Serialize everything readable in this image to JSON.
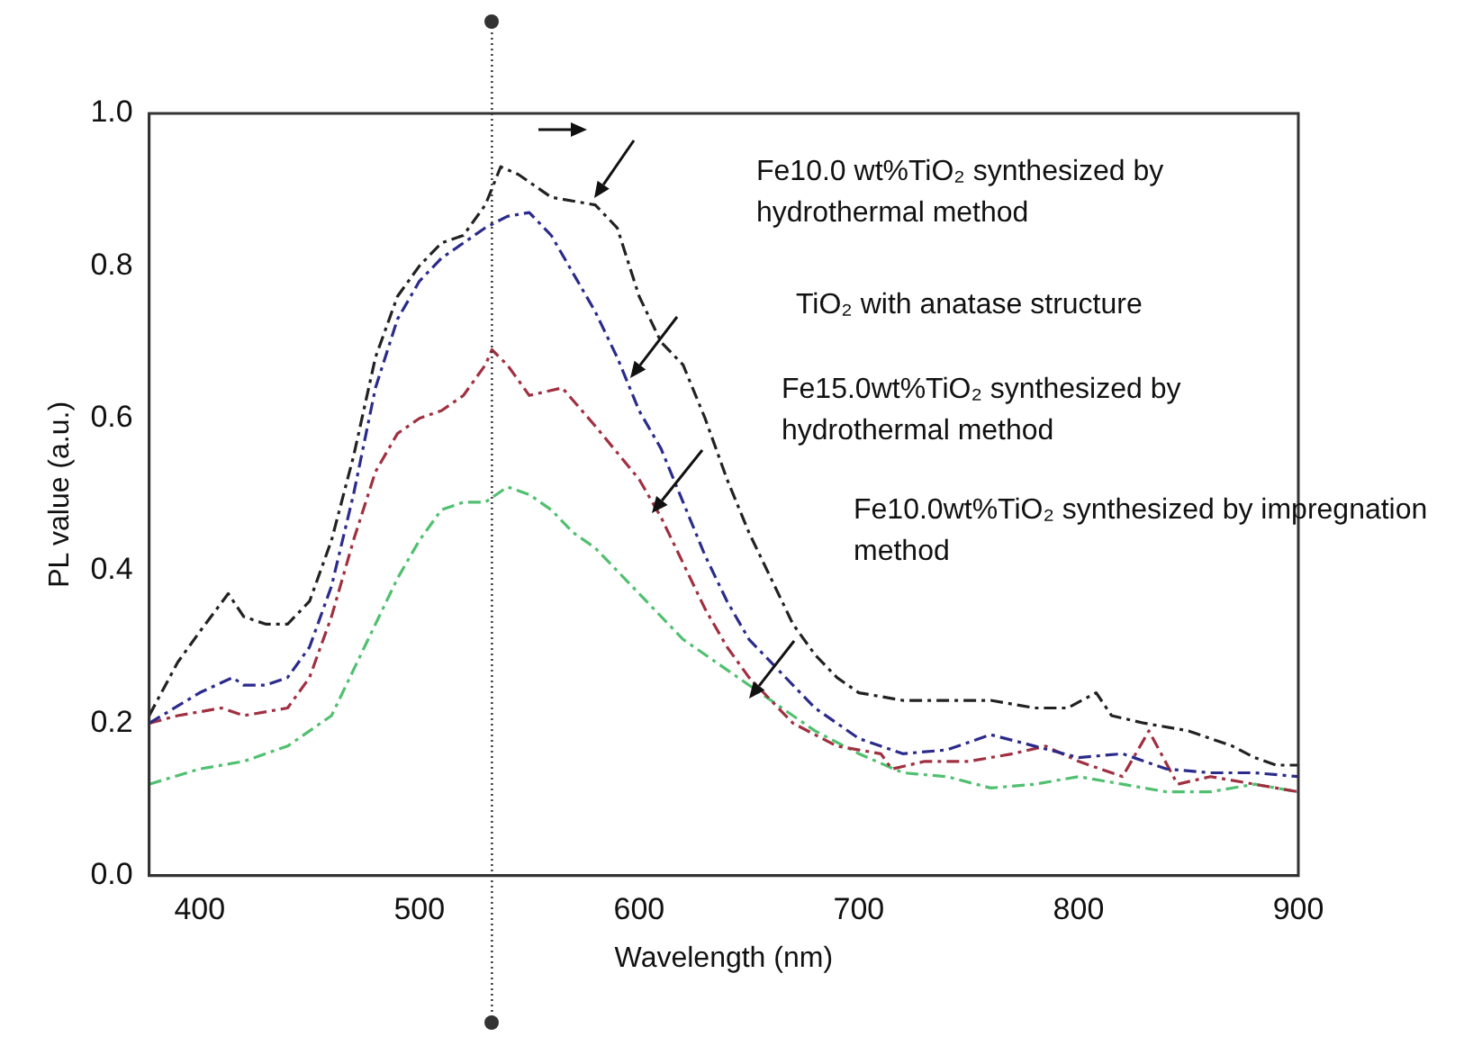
{
  "chart_data": {
    "type": "line",
    "xlabel": "Wavelength (nm)",
    "ylabel": "PL value (a.u.)",
    "xlim": [
      377,
      900
    ],
    "ylim": [
      0,
      1
    ],
    "xticks": [
      400,
      500,
      600,
      700,
      800,
      900
    ],
    "yticks": [
      {
        "value": 0,
        "label": "0.0"
      },
      {
        "value": 0.2,
        "label": "0.2"
      },
      {
        "value": 0.4,
        "label": "0.4"
      },
      {
        "value": 0.6,
        "label": "0.6"
      },
      {
        "value": 0.8,
        "label": "0.8"
      },
      {
        "value": 1,
        "label": "1.0"
      }
    ],
    "grid": false,
    "legend": false,
    "marker": "none",
    "line_style": "dashed",
    "ref_lines": [
      {
        "axis": "x",
        "value": 533,
        "color": "#333333",
        "line_style": "dotted"
      }
    ],
    "annotations": [
      "Fe10.0 wt%TiO₂ synthesized by hydrothermal method",
      "TiO₂ with anatase structure",
      "Fe15.0wt%TiO₂ synthesized by hydrothermal method",
      "Fe10.0wt%TiO₂ synthesized by impregnation method"
    ],
    "series": [
      {
        "color": "#222222",
        "x": [
          377,
          390,
          400,
          413,
          420,
          430,
          440,
          450,
          460,
          470,
          480,
          490,
          500,
          510,
          520,
          530,
          537,
          545,
          560,
          580,
          590,
          600,
          610,
          620,
          630,
          640,
          650,
          660,
          670,
          680,
          690,
          700,
          720,
          740,
          760,
          780,
          795,
          808,
          815,
          830,
          850,
          870,
          880,
          890,
          900
        ],
        "values": [
          0.21,
          0.28,
          0.32,
          0.37,
          0.34,
          0.33,
          0.33,
          0.36,
          0.44,
          0.55,
          0.68,
          0.76,
          0.8,
          0.83,
          0.84,
          0.88,
          0.93,
          0.92,
          0.89,
          0.88,
          0.85,
          0.76,
          0.7,
          0.67,
          0.6,
          0.52,
          0.45,
          0.39,
          0.33,
          0.29,
          0.26,
          0.24,
          0.23,
          0.23,
          0.23,
          0.22,
          0.22,
          0.24,
          0.21,
          0.2,
          0.19,
          0.17,
          0.155,
          0.145,
          0.145
        ]
      },
      {
        "color": "#2b2b8c",
        "x": [
          377,
          400,
          415,
          420,
          430,
          440,
          450,
          460,
          470,
          480,
          490,
          500,
          510,
          520,
          530,
          540,
          550,
          560,
          570,
          580,
          590,
          600,
          610,
          620,
          630,
          640,
          650,
          660,
          670,
          680,
          700,
          720,
          740,
          760,
          780,
          800,
          820,
          840,
          860,
          880,
          900
        ],
        "values": [
          0.2,
          0.24,
          0.26,
          0.25,
          0.25,
          0.26,
          0.3,
          0.38,
          0.5,
          0.64,
          0.73,
          0.78,
          0.81,
          0.83,
          0.85,
          0.865,
          0.87,
          0.84,
          0.79,
          0.74,
          0.68,
          0.61,
          0.56,
          0.49,
          0.42,
          0.36,
          0.31,
          0.28,
          0.25,
          0.22,
          0.18,
          0.16,
          0.165,
          0.185,
          0.17,
          0.155,
          0.16,
          0.14,
          0.135,
          0.135,
          0.13
        ]
      },
      {
        "color": "#a03040",
        "x": [
          377,
          390,
          410,
          420,
          440,
          450,
          460,
          470,
          480,
          490,
          500,
          510,
          520,
          530,
          533,
          540,
          550,
          565,
          580,
          600,
          610,
          620,
          630,
          640,
          650,
          660,
          670,
          690,
          710,
          715,
          730,
          750,
          770,
          785,
          800,
          820,
          832,
          845,
          860,
          880,
          900
        ],
        "values": [
          0.2,
          0.21,
          0.22,
          0.21,
          0.22,
          0.26,
          0.34,
          0.44,
          0.53,
          0.58,
          0.6,
          0.61,
          0.63,
          0.67,
          0.69,
          0.67,
          0.63,
          0.64,
          0.59,
          0.52,
          0.47,
          0.41,
          0.35,
          0.3,
          0.26,
          0.23,
          0.2,
          0.17,
          0.16,
          0.14,
          0.15,
          0.15,
          0.16,
          0.17,
          0.15,
          0.13,
          0.19,
          0.12,
          0.13,
          0.12,
          0.11
        ]
      },
      {
        "color": "#50c070",
        "x": [
          377,
          400,
          420,
          440,
          460,
          470,
          480,
          490,
          500,
          510,
          520,
          530,
          540,
          550,
          560,
          570,
          580,
          590,
          600,
          620,
          640,
          660,
          680,
          700,
          720,
          740,
          760,
          780,
          800,
          820,
          840,
          860,
          880,
          900
        ],
        "values": [
          0.12,
          0.14,
          0.15,
          0.17,
          0.21,
          0.27,
          0.33,
          0.39,
          0.44,
          0.48,
          0.49,
          0.49,
          0.51,
          0.5,
          0.48,
          0.45,
          0.43,
          0.4,
          0.37,
          0.31,
          0.27,
          0.23,
          0.19,
          0.16,
          0.135,
          0.13,
          0.115,
          0.12,
          0.13,
          0.12,
          0.11,
          0.11,
          0.12,
          0.11
        ]
      }
    ]
  }
}
